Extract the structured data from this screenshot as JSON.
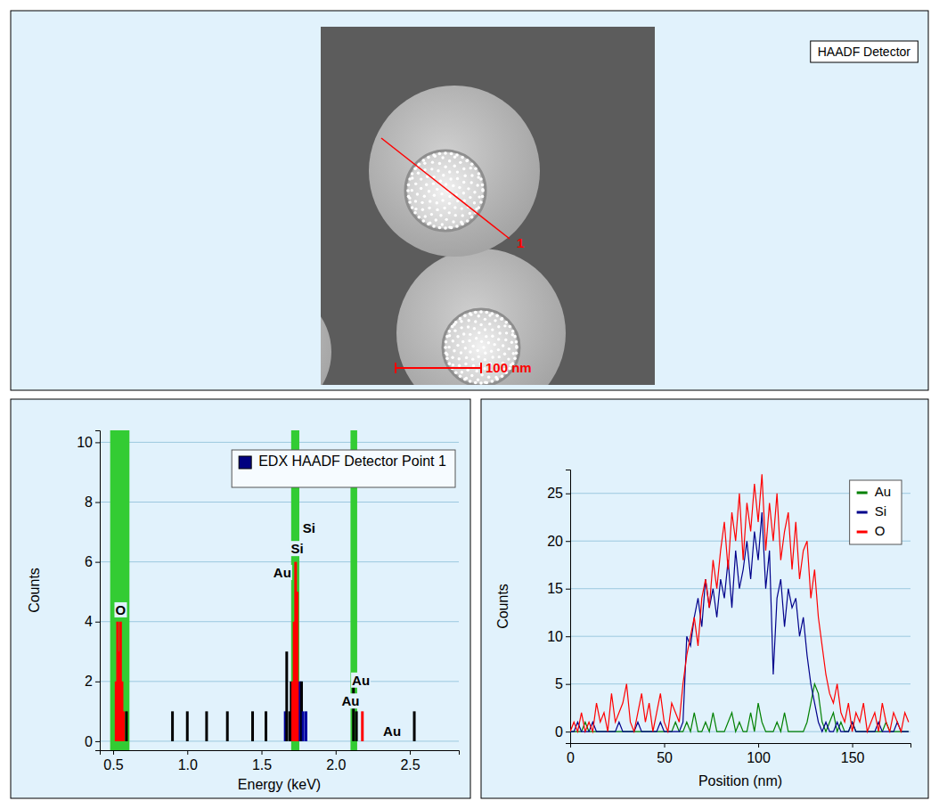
{
  "image_panel": {
    "detector_label": "HAADF Detector",
    "line_label": "1",
    "scale_bar_label": "100 nm"
  },
  "chart_data": [
    {
      "type": "bar",
      "legend": "upper right",
      "grid": true,
      "x_label": "Energy (keV)",
      "y_label": "Counts",
      "xlim": [
        0.41,
        2.83
      ],
      "ylim": [
        -0.3,
        10.4
      ],
      "xticks": [
        0.5,
        {
          "value": 1,
          "label": "1.0"
        },
        1.5,
        {
          "value": 2,
          "label": "2.0"
        },
        2.5
      ],
      "yticks": [
        0,
        2,
        4,
        6,
        8,
        10
      ],
      "bands": [
        {
          "from": 0.48,
          "to": 0.61,
          "color": "#33cc33"
        },
        {
          "from": 1.7,
          "to": 1.755,
          "color": "#33cc33"
        },
        {
          "from": 2.1,
          "to": 2.145,
          "color": "#33cc33"
        }
      ],
      "annotations": [
        {
          "text": "O",
          "x": 0.55,
          "y": 4.35
        },
        {
          "text": "Si",
          "x": 1.82,
          "y": 7.1
        },
        {
          "text": "Si",
          "x": 1.74,
          "y": 6.4
        },
        {
          "text": "Au",
          "x": 1.64,
          "y": 5.6
        },
        {
          "text": "Au",
          "x": 2.17,
          "y": 2.0
        },
        {
          "text": "Au",
          "x": 2.1,
          "y": 1.3
        },
        {
          "text": "Au",
          "x": 2.38,
          "y": 0.3
        }
      ],
      "series": [
        {
          "name": "EDX HAADF Detector Point 1",
          "color": "#000080",
          "x": [
            0.52,
            0.53,
            0.54,
            0.55,
            0.56,
            0.57,
            0.59,
            0.9,
            1.0,
            1.13,
            1.27,
            1.44,
            1.53,
            1.66,
            1.67,
            1.69,
            1.7,
            1.71,
            1.72,
            1.73,
            1.74,
            1.75,
            1.76,
            1.77,
            1.78,
            1.8,
            2.12,
            2.14,
            2.18,
            2.53
          ],
          "values": [
            2,
            4,
            3,
            4,
            2,
            1,
            1,
            1,
            1,
            1,
            1,
            1,
            1,
            1,
            3,
            1,
            2,
            2,
            4,
            6,
            5,
            2,
            2,
            2,
            1,
            1,
            2,
            1,
            1,
            1
          ],
          "colors": [
            "#ff0000",
            "#ff0000",
            "#ff0000",
            "#ff0000",
            "#ff0000",
            "#ff0000",
            "#000000",
            "#000000",
            "#000000",
            "#000000",
            "#000000",
            "#000000",
            "#000000",
            "#0000a0",
            "#000000",
            "#000000",
            "#000000",
            "#ff0000",
            "#ff0000",
            "#ff0000",
            "#ff0000",
            "#ff0000",
            "#0000a0",
            "#000000",
            "#0000a0",
            "#0000a0",
            "#000000",
            "#000000",
            "#ff0000",
            "#000000"
          ]
        }
      ]
    },
    {
      "type": "line",
      "legend": "upper right",
      "grid": true,
      "x_label": "Position (nm)",
      "y_label": "Counts",
      "xlim": [
        0,
        181
      ],
      "ylim": [
        -1.2,
        27.5
      ],
      "xticks": [
        0,
        50,
        100,
        150
      ],
      "yticks": [
        0,
        5,
        10,
        15,
        20,
        25
      ],
      "x": [
        0,
        2,
        4,
        6,
        8,
        10,
        12,
        14,
        16,
        18,
        20,
        22,
        24,
        26,
        28,
        30,
        32,
        34,
        36,
        38,
        40,
        42,
        44,
        46,
        48,
        50,
        52,
        54,
        56,
        58,
        60,
        62,
        64,
        66,
        68,
        70,
        72,
        74,
        76,
        78,
        80,
        82,
        84,
        86,
        88,
        90,
        92,
        94,
        96,
        98,
        100,
        102,
        104,
        106,
        108,
        110,
        112,
        114,
        116,
        118,
        120,
        122,
        124,
        126,
        128,
        130,
        132,
        134,
        136,
        138,
        140,
        142,
        144,
        146,
        148,
        150,
        152,
        154,
        156,
        158,
        160,
        162,
        164,
        166,
        168,
        170,
        172,
        174,
        176,
        178,
        180
      ],
      "series": [
        {
          "name": "Au",
          "color": "#008000",
          "values": [
            0,
            0,
            0,
            0,
            1,
            0,
            0,
            0,
            0,
            0,
            0,
            0,
            0,
            0,
            0,
            0,
            0,
            0,
            0,
            0,
            0,
            0,
            0,
            0,
            0,
            0,
            0,
            0,
            1,
            0,
            0,
            1,
            0,
            2,
            0,
            0,
            1,
            0,
            2,
            0,
            0,
            0,
            1,
            2,
            0,
            1,
            0,
            0,
            2,
            0,
            3,
            1,
            0,
            0,
            0,
            1,
            0,
            2,
            0,
            0,
            0,
            0,
            0,
            1,
            3,
            5,
            4,
            1,
            0,
            1,
            2,
            0,
            1,
            0,
            0,
            1,
            0,
            0,
            0,
            0,
            0,
            0,
            0,
            0,
            1,
            0,
            0,
            0,
            0,
            0,
            0
          ]
        },
        {
          "name": "Si",
          "color": "#00008b",
          "values": [
            0,
            0,
            1,
            0,
            0,
            0,
            1,
            0,
            0,
            0,
            0,
            0,
            0,
            1,
            0,
            0,
            0,
            0,
            1,
            0,
            0,
            0,
            0,
            0,
            1,
            0,
            0,
            0,
            0,
            0,
            1,
            10,
            9,
            12,
            14,
            11,
            16,
            13,
            15,
            12,
            16,
            14,
            18,
            13,
            19,
            15,
            17,
            20,
            16,
            21,
            18,
            23,
            15,
            19,
            6,
            14,
            16,
            11,
            15,
            13,
            14,
            10,
            12,
            8,
            5,
            3,
            1,
            0,
            1,
            0,
            0,
            1,
            0,
            0,
            0,
            1,
            0,
            0,
            0,
            0,
            0,
            0,
            1,
            0,
            0,
            0,
            0,
            1,
            0,
            0,
            0
          ]
        },
        {
          "name": "O",
          "color": "#ff0000",
          "values": [
            0,
            1,
            0,
            2,
            0,
            1,
            0,
            3,
            1,
            2,
            0,
            4,
            1,
            2,
            3,
            5,
            1,
            0,
            2,
            4,
            1,
            3,
            0,
            2,
            4,
            1,
            0,
            3,
            2,
            1,
            5,
            8,
            10,
            12,
            9,
            14,
            16,
            13,
            18,
            15,
            19,
            22,
            17,
            23,
            20,
            25,
            18,
            24,
            21,
            26,
            22,
            27,
            19,
            24,
            20,
            25,
            18,
            21,
            23,
            17,
            22,
            16,
            19,
            20,
            14,
            17,
            12,
            9,
            6,
            4,
            3,
            5,
            2,
            1,
            3,
            0,
            2,
            1,
            3,
            0,
            1,
            2,
            0,
            3,
            1,
            0,
            2,
            1,
            0,
            2,
            1
          ]
        }
      ]
    }
  ]
}
